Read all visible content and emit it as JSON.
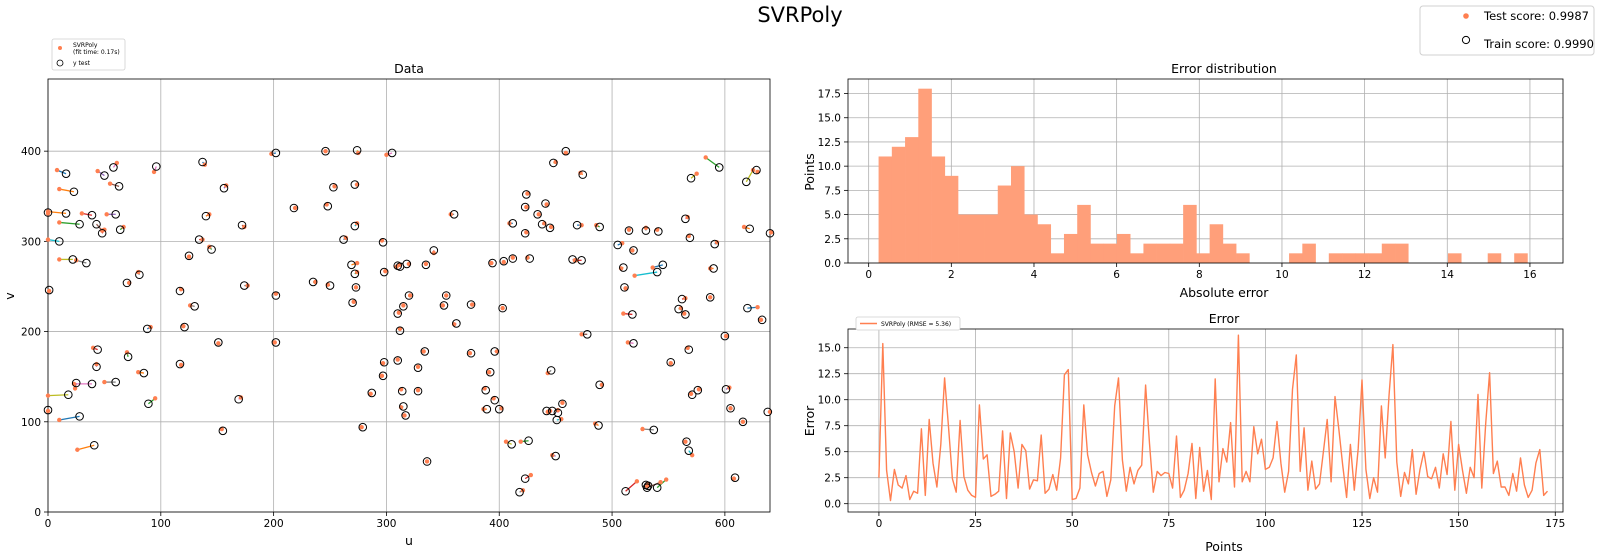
{
  "figure": {
    "title": "SVRPoly",
    "legend": {
      "test_label": "Test score: 0.9987",
      "train_label": "Train score: 0.9990",
      "test_color": "#ff7f50",
      "train_marker": "open-circle"
    }
  },
  "chart_data": [
    {
      "type": "scatter",
      "title": "Data",
      "xlabel": "u",
      "ylabel": "v",
      "xlim": [
        0,
        640
      ],
      "ylim": [
        0,
        480
      ],
      "xticks": [
        0,
        100,
        200,
        300,
        400,
        500,
        600
      ],
      "yticks": [
        0,
        100,
        200,
        300,
        400
      ],
      "grid": true,
      "legend": {
        "position": "top-left",
        "pred_label": "SVRPoly",
        "fit_time": "(fit time: 0.17s)",
        "true_label": "y test"
      },
      "segment_colors": [
        "#1f77b4",
        "#ff7f0e",
        "#2ca02c",
        "#d62728",
        "#9467bd",
        "#8c564b",
        "#e377c2",
        "#7f7f7f",
        "#bcbd22",
        "#17becf"
      ],
      "pred_color": "#ff7f50",
      "points": [
        [
          16,
          375,
          8,
          379
        ],
        [
          23,
          355,
          10,
          358
        ],
        [
          28,
          319,
          10,
          321
        ],
        [
          39,
          329,
          30,
          331
        ],
        [
          50,
          373,
          44,
          378
        ],
        [
          63,
          361,
          55,
          364
        ],
        [
          58,
          382,
          61,
          387
        ],
        [
          34,
          276,
          25,
          279
        ],
        [
          22,
          280,
          10,
          280
        ],
        [
          10,
          300,
          0,
          302
        ],
        [
          0,
          332,
          0,
          331
        ],
        [
          16,
          331,
          0,
          333
        ],
        [
          64,
          313,
          67,
          316
        ],
        [
          48,
          309,
          50,
          313
        ],
        [
          60,
          330,
          52,
          330
        ],
        [
          43,
          319,
          48,
          312
        ],
        [
          96,
          383,
          94,
          377
        ],
        [
          81,
          263,
          80,
          266
        ],
        [
          70,
          254,
          72,
          254
        ],
        [
          1,
          246,
          1,
          245
        ],
        [
          137,
          388,
          139,
          385
        ],
        [
          140,
          328,
          143,
          330
        ],
        [
          145,
          291,
          143,
          294
        ],
        [
          134,
          302,
          137,
          302
        ],
        [
          156,
          359,
          158,
          362
        ],
        [
          172,
          318,
          174,
          316
        ],
        [
          125,
          284,
          125,
          283
        ],
        [
          130,
          228,
          126,
          229
        ],
        [
          117,
          245,
          118,
          247
        ],
        [
          121,
          205,
          120,
          206
        ],
        [
          88,
          203,
          91,
          205
        ],
        [
          85,
          154,
          80,
          155
        ],
        [
          71,
          172,
          70,
          177
        ],
        [
          44,
          180,
          40,
          182
        ],
        [
          43,
          161,
          43,
          164
        ],
        [
          25,
          143,
          24,
          137
        ],
        [
          39,
          142,
          23,
          142
        ],
        [
          60,
          144,
          50,
          144
        ],
        [
          18,
          130,
          0,
          129
        ],
        [
          0,
          113,
          0,
          112
        ],
        [
          28,
          106,
          10,
          102
        ],
        [
          41,
          74,
          26,
          69
        ],
        [
          89,
          120,
          95,
          126
        ],
        [
          117,
          164,
          118,
          163
        ],
        [
          151,
          188,
          151,
          187
        ],
        [
          155,
          90,
          154,
          92
        ],
        [
          169,
          125,
          171,
          127
        ],
        [
          174,
          251,
          177,
          251
        ],
        [
          202,
          240,
          202,
          242
        ],
        [
          202,
          188,
          201,
          188
        ],
        [
          202,
          398,
          198,
          397
        ],
        [
          218,
          337,
          219,
          337
        ],
        [
          235,
          255,
          237,
          255
        ],
        [
          248,
          339,
          247,
          341
        ],
        [
          253,
          360,
          254,
          361
        ],
        [
          250,
          251,
          248,
          252
        ],
        [
          246,
          400,
          246,
          400
        ],
        [
          272,
          363,
          274,
          363
        ],
        [
          274,
          401,
          275,
          398
        ],
        [
          272,
          317,
          274,
          320
        ],
        [
          262,
          302,
          264,
          304
        ],
        [
          269,
          274,
          274,
          276
        ],
        [
          272,
          264,
          274,
          266
        ],
        [
          270,
          232,
          271,
          233
        ],
        [
          273,
          249,
          273,
          249
        ],
        [
          297,
          299,
          296,
          301
        ],
        [
          305,
          398,
          300,
          396
        ],
        [
          298,
          266,
          299,
          267
        ],
        [
          310,
          273,
          309,
          272
        ],
        [
          312,
          272,
          312,
          274
        ],
        [
          310,
          220,
          311,
          221
        ],
        [
          315,
          228,
          315,
          229
        ],
        [
          312,
          201,
          312,
          203
        ],
        [
          310,
          168,
          310,
          169
        ],
        [
          298,
          166,
          297,
          165
        ],
        [
          297,
          151,
          296,
          151
        ],
        [
          314,
          134,
          313,
          136
        ],
        [
          328,
          134,
          328,
          135
        ],
        [
          328,
          160,
          328,
          161
        ],
        [
          334,
          178,
          333,
          178
        ],
        [
          320,
          240,
          321,
          240
        ],
        [
          318,
          275,
          320,
          275
        ],
        [
          335,
          274,
          335,
          275
        ],
        [
          342,
          290,
          342,
          287
        ],
        [
          351,
          229,
          350,
          229
        ],
        [
          353,
          240,
          353,
          240
        ],
        [
          362,
          209,
          360,
          208
        ],
        [
          360,
          330,
          357,
          330
        ],
        [
          375,
          230,
          376,
          230
        ],
        [
          375,
          176,
          374,
          176
        ],
        [
          388,
          135,
          387,
          137
        ],
        [
          389,
          114,
          386,
          114
        ],
        [
          392,
          155,
          391,
          155
        ],
        [
          396,
          178,
          398,
          178
        ],
        [
          396,
          124,
          395,
          126
        ],
        [
          394,
          276,
          393,
          276
        ],
        [
          403,
          226,
          403,
          226
        ],
        [
          404,
          278,
          404,
          277
        ],
        [
          412,
          281,
          412,
          282
        ],
        [
          427,
          281,
          425,
          282
        ],
        [
          412,
          320,
          409,
          320
        ],
        [
          423,
          338,
          424,
          338
        ],
        [
          423,
          309,
          424,
          310
        ],
        [
          424,
          352,
          425,
          353
        ],
        [
          434,
          330,
          435,
          330
        ],
        [
          438,
          319,
          440,
          320
        ],
        [
          441,
          342,
          442,
          341
        ],
        [
          445,
          315,
          446,
          316
        ],
        [
          448,
          387,
          450,
          388
        ],
        [
          459,
          400,
          459,
          398
        ],
        [
          469,
          318,
          473,
          318
        ],
        [
          474,
          374,
          472,
          376
        ],
        [
          489,
          316,
          486,
          318
        ],
        [
          473,
          279,
          467,
          279
        ],
        [
          465,
          280,
          468,
          279
        ],
        [
          478,
          197,
          473,
          197
        ],
        [
          447,
          112,
          445,
          112
        ],
        [
          446,
          157,
          443,
          154
        ],
        [
          456,
          120,
          456,
          121
        ],
        [
          451,
          102,
          455,
          103
        ],
        [
          489,
          141,
          491,
          141
        ],
        [
          488,
          96,
          485,
          98
        ],
        [
          426,
          79,
          419,
          78
        ],
        [
          423,
          37,
          428,
          41
        ],
        [
          450,
          62,
          447,
          63
        ],
        [
          336,
          56,
          336,
          56
        ],
        [
          317,
          107,
          316,
          107
        ],
        [
          279,
          94,
          278,
          94
        ],
        [
          287,
          132,
          286,
          131
        ],
        [
          315,
          117,
          313,
          116
        ],
        [
          505,
          296,
          509,
          298
        ],
        [
          510,
          271,
          508,
          270
        ],
        [
          511,
          249,
          512,
          248
        ],
        [
          518,
          219,
          510,
          220
        ],
        [
          515,
          312,
          515,
          313
        ],
        [
          519,
          290,
          518,
          290
        ],
        [
          519,
          187,
          514,
          188
        ],
        [
          530,
          312,
          530,
          315
        ],
        [
          541,
          311,
          540,
          313
        ],
        [
          540,
          266,
          520,
          262
        ],
        [
          545,
          274,
          536,
          271
        ],
        [
          552,
          166,
          552,
          165
        ],
        [
          559,
          225,
          561,
          226
        ],
        [
          562,
          236,
          565,
          237
        ],
        [
          565,
          219,
          564,
          220
        ],
        [
          568,
          180,
          567,
          182
        ],
        [
          565,
          325,
          567,
          327
        ],
        [
          569,
          304,
          568,
          306
        ],
        [
          570,
          370,
          575,
          375
        ],
        [
          587,
          238,
          587,
          238
        ],
        [
          591,
          297,
          593,
          299
        ],
        [
          590,
          270,
          587,
          270
        ],
        [
          595,
          382,
          583,
          393
        ],
        [
          600,
          195,
          601,
          195
        ],
        [
          601,
          136,
          604,
          138
        ],
        [
          609,
          38,
          608,
          37
        ],
        [
          605,
          115,
          605,
          115
        ],
        [
          616,
          100,
          616,
          100
        ],
        [
          619,
          366,
          625,
          379
        ],
        [
          628,
          379,
          629,
          377
        ],
        [
          620,
          226,
          629,
          227
        ],
        [
          622,
          314,
          617,
          316
        ],
        [
          633,
          213,
          632,
          213
        ],
        [
          640,
          309,
          641,
          310
        ],
        [
          638,
          111,
          640,
          111
        ],
        [
          531,
          27,
          543,
          33
        ],
        [
          532,
          29,
          531,
          29
        ],
        [
          537,
          91,
          527,
          92
        ],
        [
          566,
          78,
          565,
          78
        ],
        [
          568,
          68,
          571,
          63
        ],
        [
          576,
          135,
          577,
          136
        ],
        [
          571,
          130,
          570,
          131
        ],
        [
          540,
          27,
          548,
          36
        ],
        [
          512,
          23,
          522,
          34
        ],
        [
          530,
          30,
          532,
          31
        ],
        [
          442,
          112,
          443,
          111
        ],
        [
          452,
          110,
          452,
          113
        ],
        [
          418,
          22,
          421,
          24
        ],
        [
          411,
          75,
          406,
          78
        ],
        [
          400,
          114,
          402,
          115
        ]
      ]
    },
    {
      "type": "bar",
      "title": "Error distribution",
      "xlabel": "Absolute error",
      "ylabel": "Points",
      "xlim": [
        -0.5,
        16.8
      ],
      "ylim": [
        0,
        19
      ],
      "xticks": [
        0,
        2,
        4,
        6,
        8,
        10,
        12,
        14,
        16
      ],
      "yticks": [
        0.0,
        2.5,
        5.0,
        7.5,
        10.0,
        12.5,
        15.0,
        17.5
      ],
      "grid": true,
      "color": "#ff9f7a",
      "bin_start": 0.24,
      "bin_width": 0.3204,
      "values": [
        11,
        12,
        13,
        18,
        11,
        9,
        5,
        5,
        5,
        8,
        10,
        5,
        4,
        1,
        3,
        6,
        2,
        2,
        3,
        1,
        2,
        2,
        2,
        6,
        1,
        4,
        2,
        1,
        0,
        0,
        0,
        1,
        2,
        0,
        1,
        1,
        1,
        1,
        2,
        2,
        0,
        0,
        0,
        1,
        0,
        0,
        1,
        0,
        1
      ]
    },
    {
      "type": "line",
      "title": "Error",
      "xlabel": "Points",
      "ylabel": "Error",
      "xlim": [
        -8,
        177
      ],
      "ylim": [
        -0.8,
        16.8
      ],
      "xticks": [
        0,
        25,
        50,
        75,
        100,
        125,
        150,
        175
      ],
      "yticks": [
        0.0,
        2.5,
        5.0,
        7.5,
        10.0,
        12.5,
        15.0
      ],
      "grid": true,
      "color": "#ff7f50",
      "legend": {
        "position": "top-left",
        "label": "SVRPoly  (RMSE = 5.36)"
      },
      "values": [
        2.5,
        15.4,
        3.2,
        0.3,
        3.3,
        1.8,
        1.5,
        2.7,
        0.4,
        1.2,
        1.0,
        7.2,
        0.8,
        8.1,
        3.9,
        1.6,
        5.7,
        12.1,
        7.4,
        2.4,
        1.1,
        8.0,
        2.6,
        1.3,
        0.8,
        0.6,
        9.5,
        4.3,
        4.7,
        0.7,
        0.9,
        1.2,
        7.0,
        0.5,
        6.8,
        5.0,
        1.5,
        5.7,
        5.1,
        1.4,
        2.3,
        2.2,
        6.6,
        1.0,
        1.4,
        2.8,
        1.3,
        4.4,
        12.4,
        12.9,
        0.4,
        0.5,
        1.5,
        9.5,
        4.7,
        3.0,
        1.7,
        2.9,
        3.1,
        0.7,
        2.3,
        9.4,
        12.1,
        4.2,
        1.2,
        3.5,
        1.9,
        3.2,
        3.7,
        11.4,
        5.8,
        1.1,
        3.1,
        2.7,
        3.0,
        2.9,
        1.5,
        6.5,
        0.6,
        1.3,
        2.9,
        5.8,
        0.5,
        5.4,
        1.2,
        3.2,
        0.4,
        12.0,
        2.1,
        5.3,
        4.0,
        7.8,
        1.6,
        16.2,
        2.1,
        3.1,
        2.1,
        7.4,
        4.8,
        6.2,
        3.3,
        3.5,
        4.4,
        7.9,
        3.9,
        1.1,
        3.1,
        11.0,
        14.3,
        3.1,
        7.3,
        1.3,
        4.1,
        1.4,
        1.9,
        5.0,
        8.1,
        2.1,
        10.3,
        7.2,
        3.7,
        0.6,
        5.7,
        1.3,
        5.3,
        11.9,
        3.3,
        0.5,
        2.5,
        1.1,
        9.4,
        4.4,
        10.5,
        15.3,
        4.0,
        0.7,
        3.0,
        1.9,
        5.2,
        0.9,
        3.3,
        5.0,
        2.6,
        2.4,
        3.5,
        1.5,
        4.8,
        2.8,
        7.9,
        1.3,
        5.7,
        3.2,
        1.0,
        3.5,
        2.5,
        10.5,
        1.5,
        7.7,
        12.6,
        2.9,
        4.1,
        1.6,
        1.6,
        0.8,
        2.9,
        1.2,
        4.4,
        1.8,
        0.6,
        1.3,
        3.9,
        5.2,
        0.8,
        1.2
      ]
    }
  ]
}
